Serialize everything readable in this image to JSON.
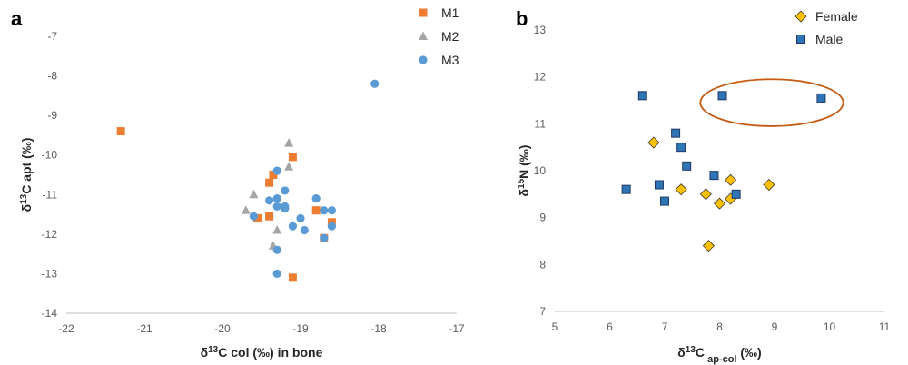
{
  "chart_data": [
    {
      "type": "scatter",
      "panel_label": "a",
      "title": "",
      "xlabel": "δ¹³C col (‰) in bone",
      "ylabel": "δ¹³C apt (‰)",
      "xlim": [
        -22,
        -17
      ],
      "ylim": [
        -14,
        -7
      ],
      "x_ticks": [
        -22,
        -21,
        -20,
        -19,
        -18,
        -17
      ],
      "y_ticks": [
        -14,
        -13,
        -12,
        -11,
        -10,
        -9,
        -8,
        -7
      ],
      "grid": false,
      "legend_position": "top-right",
      "series": [
        {
          "name": "M1",
          "marker": "square",
          "color": "#ED7D31",
          "points": [
            [
              -21.3,
              -9.4
            ],
            [
              -19.1,
              -10.05
            ],
            [
              -19.35,
              -10.5
            ],
            [
              -19.4,
              -10.7
            ],
            [
              -19.55,
              -11.6
            ],
            [
              -19.4,
              -11.55
            ],
            [
              -18.8,
              -11.4
            ],
            [
              -18.6,
              -11.7
            ],
            [
              -18.7,
              -12.1
            ],
            [
              -19.1,
              -13.1
            ]
          ]
        },
        {
          "name": "M2",
          "marker": "triangle",
          "color": "#A5A5A5",
          "points": [
            [
              -19.15,
              -9.7
            ],
            [
              -19.15,
              -10.3
            ],
            [
              -19.6,
              -11.0
            ],
            [
              -19.7,
              -11.4
            ],
            [
              -19.3,
              -11.9
            ],
            [
              -19.35,
              -12.3
            ]
          ]
        },
        {
          "name": "M3",
          "marker": "circle",
          "color": "#5B9BD5",
          "points": [
            [
              -18.05,
              -8.2
            ],
            [
              -19.3,
              -10.4
            ],
            [
              -19.2,
              -10.9
            ],
            [
              -19.4,
              -11.15
            ],
            [
              -19.3,
              -11.1
            ],
            [
              -19.3,
              -11.3
            ],
            [
              -19.2,
              -11.3
            ],
            [
              -19.2,
              -11.35
            ],
            [
              -19.6,
              -11.55
            ],
            [
              -18.8,
              -11.1
            ],
            [
              -18.7,
              -11.4
            ],
            [
              -18.6,
              -11.4
            ],
            [
              -19.0,
              -11.6
            ],
            [
              -19.1,
              -11.8
            ],
            [
              -18.95,
              -11.9
            ],
            [
              -18.6,
              -11.8
            ],
            [
              -18.7,
              -12.1
            ],
            [
              -19.3,
              -12.4
            ],
            [
              -19.3,
              -13.0
            ]
          ]
        }
      ]
    },
    {
      "type": "scatter",
      "panel_label": "b",
      "title": "",
      "xlabel": "δ¹³C ap-col (‰)",
      "ylabel": "δ¹⁵N (‰)",
      "xlim": [
        5,
        11
      ],
      "ylim": [
        7,
        13
      ],
      "x_ticks": [
        5,
        6,
        7,
        8,
        9,
        10,
        11
      ],
      "y_ticks": [
        7,
        8,
        9,
        10,
        11,
        12,
        13
      ],
      "grid": false,
      "legend_position": "top-right",
      "annotation": {
        "type": "ellipse",
        "center": [
          8.95,
          11.45
        ],
        "radii": [
          1.3,
          0.5
        ],
        "color": "#C55A11"
      },
      "series": [
        {
          "name": "Female",
          "marker": "diamond",
          "color": "#FFC000",
          "points": [
            [
              6.8,
              10.6
            ],
            [
              7.3,
              9.6
            ],
            [
              7.75,
              9.5
            ],
            [
              8.0,
              9.3
            ],
            [
              8.2,
              9.8
            ],
            [
              8.2,
              9.4
            ],
            [
              8.9,
              9.7
            ],
            [
              7.8,
              8.4
            ]
          ]
        },
        {
          "name": "Male",
          "marker": "square",
          "color": "#2E75B6",
          "points": [
            [
              6.6,
              11.6
            ],
            [
              8.05,
              11.6
            ],
            [
              9.85,
              11.55
            ],
            [
              7.2,
              10.8
            ],
            [
              7.3,
              10.5
            ],
            [
              7.4,
              10.1
            ],
            [
              7.9,
              9.9
            ],
            [
              6.3,
              9.6
            ],
            [
              6.9,
              9.7
            ],
            [
              7.0,
              9.35
            ],
            [
              8.3,
              9.5
            ]
          ]
        }
      ]
    }
  ]
}
